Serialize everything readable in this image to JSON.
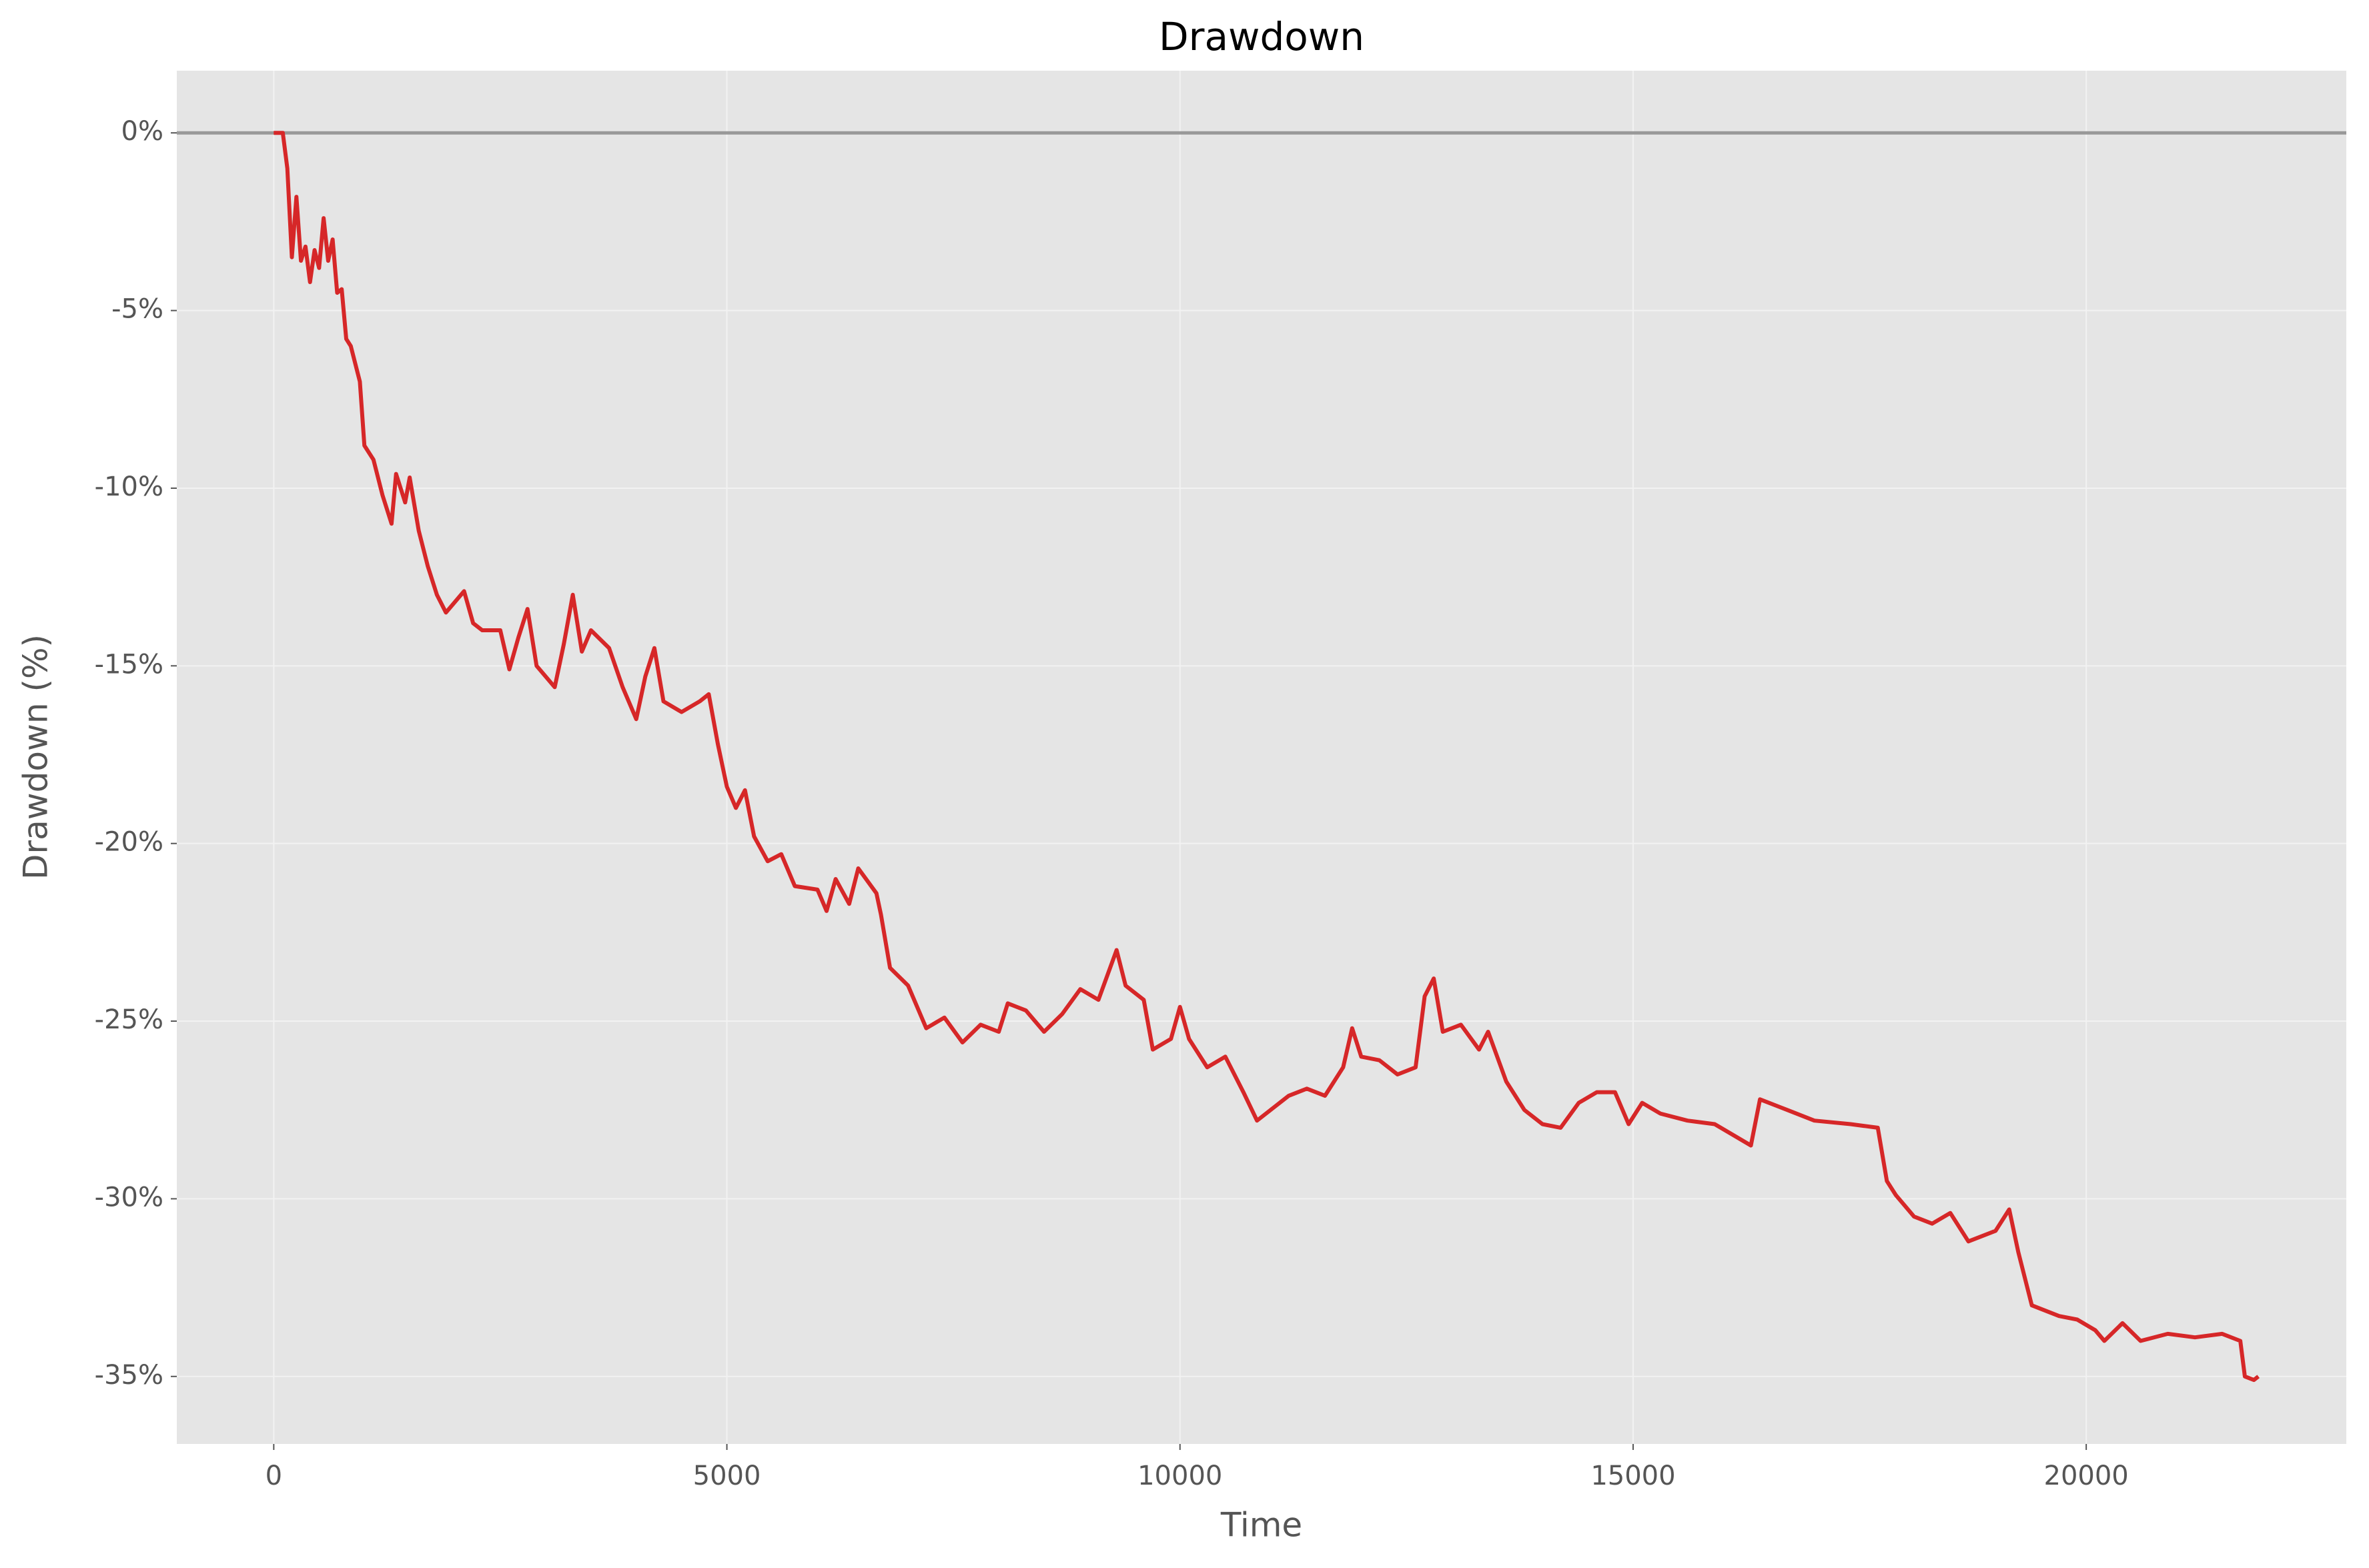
{
  "chart_data": {
    "type": "line",
    "title": "Drawdown",
    "xlabel": "Time",
    "ylabel": "Drawdown (%)",
    "color": "#d62728",
    "reference_line": 0,
    "grid": true,
    "xlim": [
      -1070,
      22870
    ],
    "ylim": [
      -36.9,
      1.75
    ],
    "xticks": [
      0,
      5000,
      10000,
      15000,
      20000
    ],
    "yticks": [
      {
        "value": 0,
        "label": "0%"
      },
      {
        "value": -5,
        "label": "-5%"
      },
      {
        "value": -10,
        "label": "-10%"
      },
      {
        "value": -15,
        "label": "-15%"
      },
      {
        "value": -20,
        "label": "-20%"
      },
      {
        "value": -25,
        "label": "-25%"
      },
      {
        "value": -30,
        "label": "-30%"
      },
      {
        "value": -35,
        "label": "-35%"
      }
    ],
    "x": [
      0,
      100,
      150,
      200,
      250,
      300,
      350,
      400,
      450,
      500,
      550,
      600,
      650,
      700,
      750,
      800,
      850,
      900,
      950,
      1000,
      1100,
      1200,
      1300,
      1350,
      1450,
      1500,
      1600,
      1700,
      1800,
      1900,
      2000,
      2100,
      2200,
      2300,
      2500,
      2600,
      2700,
      2800,
      2900,
      3000,
      3100,
      3200,
      3300,
      3400,
      3500,
      3700,
      3850,
      4000,
      4100,
      4200,
      4300,
      4500,
      4700,
      4800,
      4900,
      5000,
      5100,
      5200,
      5300,
      5450,
      5600,
      5750,
      6000,
      6100,
      6200,
      6350,
      6450,
      6650,
      6700,
      6800,
      7000,
      7200,
      7400,
      7600,
      7800,
      8000,
      8100,
      8300,
      8500,
      8700,
      8900,
      9100,
      9300,
      9400,
      9600,
      9700,
      9900,
      10000,
      10100,
      10300,
      10500,
      10700,
      10850,
      11000,
      11200,
      11400,
      11600,
      11800,
      11900,
      12000,
      12200,
      12400,
      12600,
      12700,
      12800,
      12900,
      13100,
      13300,
      13400,
      13600,
      13800,
      14000,
      14200,
      14400,
      14600,
      14800,
      14950,
      15100,
      15300,
      15600,
      15900,
      16100,
      16300,
      16400,
      16700,
      17000,
      17400,
      17700,
      17800,
      17900,
      18100,
      18300,
      18500,
      18700,
      19000,
      19150,
      19250,
      19400,
      19700,
      19900,
      20100,
      20200,
      20400,
      20600,
      20900,
      21200,
      21500,
      21700,
      21750,
      21850,
      21900
    ],
    "values": [
      0,
      0,
      -1,
      -3.5,
      -1.8,
      -3.6,
      -3.2,
      -4.2,
      -3.3,
      -3.8,
      -2.4,
      -3.6,
      -3.0,
      -4.5,
      -4.4,
      -5.8,
      -6.0,
      -6.5,
      -7.0,
      -8.8,
      -9.2,
      -10.2,
      -11.0,
      -9.6,
      -10.4,
      -9.7,
      -11.2,
      -12.2,
      -13.0,
      -13.5,
      -13.2,
      -12.9,
      -13.8,
      -14.0,
      -14.0,
      -15.1,
      -14.2,
      -13.4,
      -15.0,
      -15.3,
      -15.6,
      -14.4,
      -13.0,
      -14.6,
      -14.0,
      -14.5,
      -15.6,
      -16.5,
      -15.3,
      -14.5,
      -16.0,
      -16.3,
      -16.0,
      -15.8,
      -17.2,
      -18.4,
      -19.0,
      -18.5,
      -19.8,
      -20.5,
      -20.3,
      -21.2,
      -21.3,
      -21.9,
      -21.0,
      -21.7,
      -20.7,
      -21.4,
      -22.0,
      -23.5,
      -24.0,
      -25.2,
      -24.9,
      -25.6,
      -25.1,
      -25.3,
      -24.5,
      -24.7,
      -25.3,
      -24.8,
      -24.1,
      -24.4,
      -23.0,
      -24.0,
      -24.4,
      -25.8,
      -25.5,
      -24.6,
      -25.5,
      -26.3,
      -26.0,
      -27.0,
      -27.8,
      -27.5,
      -27.1,
      -26.9,
      -27.1,
      -26.3,
      -25.2,
      -26.0,
      -26.1,
      -26.5,
      -26.3,
      -24.3,
      -23.8,
      -25.3,
      -25.1,
      -25.8,
      -25.3,
      -26.7,
      -27.5,
      -27.9,
      -28.0,
      -27.3,
      -27.0,
      -27.0,
      -27.9,
      -27.3,
      -27.6,
      -27.8,
      -27.9,
      -28.2,
      -28.5,
      -27.2,
      -27.5,
      -27.8,
      -27.9,
      -28.0,
      -29.5,
      -29.9,
      -30.5,
      -30.7,
      -30.4,
      -31.2,
      -30.9,
      -30.3,
      -31.5,
      -33.0,
      -33.3,
      -33.4,
      -33.7,
      -34.0,
      -33.5,
      -34.0,
      -33.8,
      -33.9,
      -33.8,
      -34.0,
      -35.0,
      -35.1,
      -35.0
    ]
  }
}
